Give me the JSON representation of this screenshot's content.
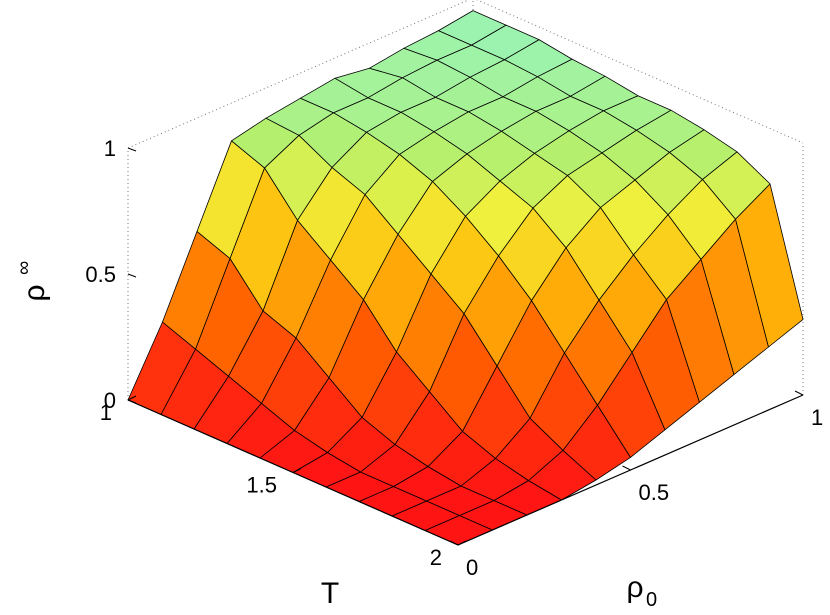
{
  "chart_data": {
    "type": "surface3d",
    "x_axis": {
      "label": "T",
      "range": [
        1,
        2
      ],
      "ticks": [
        "1",
        "1.5",
        "2"
      ]
    },
    "y_axis": {
      "label": "ρ",
      "label_subscript": "0",
      "range": [
        0,
        1
      ],
      "ticks": [
        "0",
        "0.5",
        "1"
      ]
    },
    "z_axis": {
      "label": "ρ",
      "label_subscript": "∞",
      "range": [
        0,
        1
      ],
      "ticks": [
        "0",
        "0.5",
        "1"
      ]
    },
    "grid": false,
    "box": true,
    "colormap": "autumn-to-cyan",
    "T": [
      1.0,
      1.1,
      1.2,
      1.3,
      1.4,
      1.5,
      1.6,
      1.7,
      1.8,
      1.9,
      2.0
    ],
    "rho0": [
      0.0,
      0.1,
      0.2,
      0.3,
      0.4,
      0.5,
      0.6,
      0.7,
      0.8,
      0.9,
      1.0
    ],
    "rho_inf": [
      [
        0.0,
        0.25,
        0.55,
        0.85,
        0.88,
        0.9,
        0.92,
        0.9,
        0.92,
        0.93,
        0.95
      ],
      [
        0.0,
        0.2,
        0.5,
        0.8,
        0.87,
        0.9,
        0.9,
        0.92,
        0.93,
        0.93,
        0.95
      ],
      [
        0.0,
        0.15,
        0.35,
        0.65,
        0.8,
        0.88,
        0.9,
        0.9,
        0.92,
        0.93,
        0.95
      ],
      [
        0.0,
        0.1,
        0.3,
        0.55,
        0.75,
        0.85,
        0.88,
        0.9,
        0.9,
        0.92,
        0.93
      ],
      [
        0.0,
        0.05,
        0.2,
        0.45,
        0.65,
        0.8,
        0.85,
        0.88,
        0.9,
        0.9,
        0.92
      ],
      [
        0.0,
        0.02,
        0.1,
        0.3,
        0.55,
        0.72,
        0.8,
        0.85,
        0.88,
        0.9,
        0.9
      ],
      [
        0.0,
        0.0,
        0.05,
        0.2,
        0.45,
        0.62,
        0.75,
        0.82,
        0.85,
        0.88,
        0.9
      ],
      [
        0.0,
        0.0,
        0.02,
        0.1,
        0.3,
        0.5,
        0.65,
        0.75,
        0.8,
        0.85,
        0.88
      ],
      [
        0.0,
        0.0,
        0.0,
        0.05,
        0.15,
        0.35,
        0.5,
        0.62,
        0.72,
        0.8,
        0.85
      ],
      [
        0.0,
        0.0,
        0.0,
        0.02,
        0.08,
        0.2,
        0.35,
        0.5,
        0.6,
        0.7,
        0.78
      ],
      [
        0.0,
        0.0,
        0.0,
        0.0,
        0.02,
        0.05,
        0.1,
        0.15,
        0.2,
        0.25,
        0.3
      ]
    ]
  }
}
